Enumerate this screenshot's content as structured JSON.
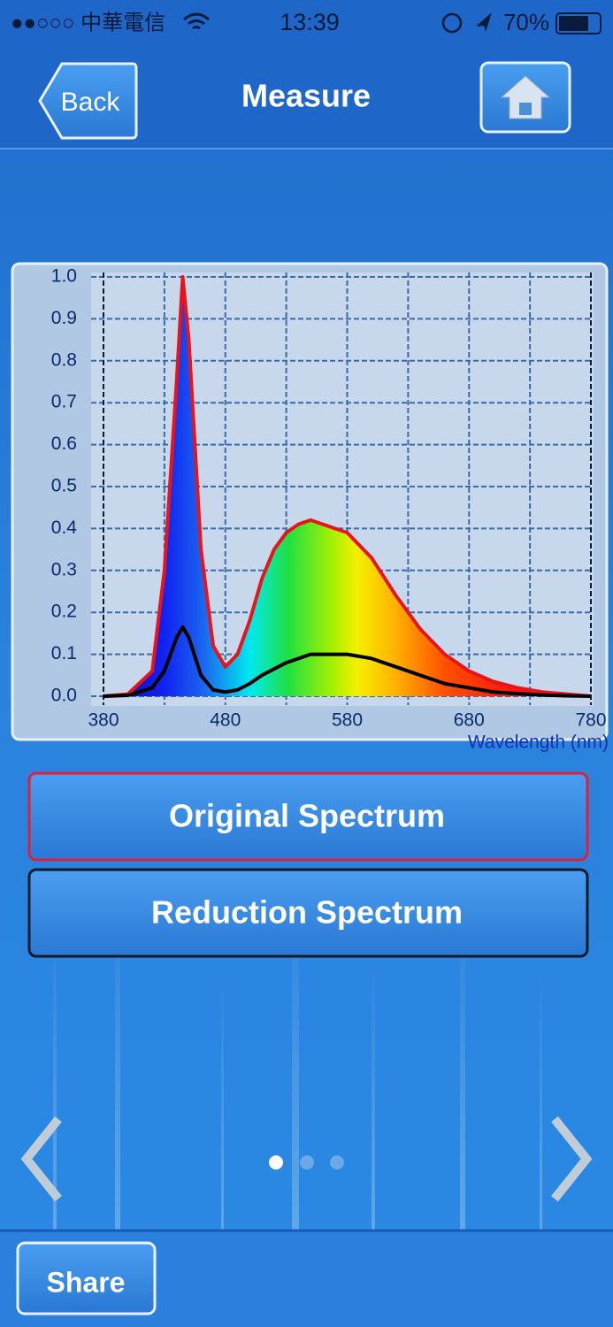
{
  "status_bar": {
    "carrier": "●●○○○ 中華電信",
    "time": "13:39",
    "battery": "70%"
  },
  "nav": {
    "back": "Back",
    "title": "Measure"
  },
  "chart_data": {
    "type": "line",
    "x_label": "Wavelength (nm)",
    "x": [
      380,
      400,
      420,
      430,
      440,
      445,
      450,
      460,
      470,
      480,
      490,
      500,
      510,
      520,
      530,
      540,
      550,
      560,
      570,
      580,
      600,
      620,
      640,
      660,
      680,
      700,
      720,
      740,
      760,
      780
    ],
    "series": [
      {
        "name": "Original Spectrum",
        "color": "#e8141a",
        "fill": "spectrum",
        "values": [
          0,
          0.005,
          0.06,
          0.3,
          0.75,
          1.0,
          0.85,
          0.35,
          0.12,
          0.07,
          0.1,
          0.18,
          0.28,
          0.35,
          0.39,
          0.41,
          0.42,
          0.41,
          0.4,
          0.39,
          0.33,
          0.24,
          0.16,
          0.1,
          0.06,
          0.035,
          0.02,
          0.01,
          0.005,
          0
        ]
      },
      {
        "name": "Reduction Spectrum",
        "color": "#000000",
        "values": [
          0,
          0.002,
          0.02,
          0.06,
          0.14,
          0.165,
          0.14,
          0.05,
          0.015,
          0.01,
          0.015,
          0.03,
          0.05,
          0.065,
          0.08,
          0.09,
          0.1,
          0.1,
          0.1,
          0.1,
          0.09,
          0.07,
          0.05,
          0.03,
          0.02,
          0.01,
          0.006,
          0.003,
          0.001,
          0
        ]
      }
    ],
    "xlim": [
      380,
      780
    ],
    "xticks": [
      380,
      480,
      580,
      680,
      780
    ],
    "x_minor_ticks": [
      430,
      530,
      630,
      730
    ],
    "ylim": [
      0,
      1
    ],
    "yticks": [
      {
        "value": 0,
        "label": "0.0"
      },
      0.1,
      0.2,
      0.3,
      0.4,
      0.5,
      0.6,
      0.7,
      0.8,
      0.9,
      {
        "value": 1,
        "label": "1.0"
      }
    ],
    "grid": true
  },
  "footer": {
    "share": "Share"
  }
}
